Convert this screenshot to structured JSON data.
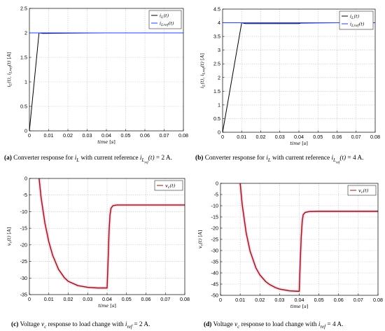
{
  "figures": [
    {
      "caption_label": "(a)",
      "caption_pre": "Converter response for ",
      "caption_mid": " with current reference ",
      "caption_sym1": "i_L",
      "caption_sym2": "i_{L_{ref}}(t) = 2 A",
      "caption_end": ".",
      "caption_text": "Converter response for i_L with current reference i_{L_{ref}}(t) = 2 A."
    },
    {
      "caption_label": "(b)",
      "caption_pre": "Converter response for ",
      "caption_mid": " with current reference ",
      "caption_sym1": "i_L",
      "caption_sym2": "i_{L_{ref}}(t) = 4 A",
      "caption_end": ".",
      "caption_text": "Converter response for i_L with current reference i_{L_{ref}}(t) = 4 A."
    },
    {
      "caption_label": "(c)",
      "caption_pre": "Voltage ",
      "caption_mid": " response to load change with ",
      "caption_sym1": "v_c",
      "caption_sym2": "i_{ref} = 2 A",
      "caption_end": ".",
      "caption_text": "Voltage v_c response to load change with i_{ref} = 2 A."
    },
    {
      "caption_label": "(d)",
      "caption_pre": "Voltage ",
      "caption_mid": " response to load change with ",
      "caption_sym1": "v_c",
      "caption_sym2": "i_{ref} = 4 A",
      "caption_end": ".",
      "caption_text": "Voltage v_c response to load change with i_{ref} = 4 A."
    }
  ],
  "chart_data": [
    {
      "type": "line",
      "xlabel": "time [s]",
      "ylabel": "i_L(t), i_{Lref}(t) [A]",
      "xlim": [
        0,
        0.08
      ],
      "ylim": [
        0,
        2.5
      ],
      "xticks": [
        "0",
        "0.01",
        "0.02",
        "0.03",
        "0.04",
        "0.05",
        "0.06",
        "0.07",
        "0.08"
      ],
      "yticks": [
        "0",
        "0.5",
        "1",
        "1.5",
        "2",
        "2.5"
      ],
      "grid": true,
      "legend_position": "top-right",
      "series": [
        {
          "name": "i_L(t)",
          "color": "#000000",
          "x": [
            0,
            0.005,
            0.007,
            0.02,
            0.04,
            0.06,
            0.08
          ],
          "y": [
            0,
            2.0,
            1.99,
            1.995,
            2.0,
            2.0,
            2.0
          ]
        },
        {
          "name": "i_{Lref}(t)",
          "color": "#1f3fff",
          "x": [
            0,
            0.08
          ],
          "y": [
            2.0,
            2.0
          ]
        }
      ]
    },
    {
      "type": "line",
      "xlabel": "time [s]",
      "ylabel": "i_L(t), i_{Lref}(t) [A]",
      "xlim": [
        0,
        0.08
      ],
      "ylim": [
        0,
        4.5
      ],
      "xticks": [
        "0",
        "0.01",
        "0.02",
        "0.03",
        "0.04",
        "0.05",
        "0.06",
        "0.07",
        "0.08"
      ],
      "yticks": [
        "0",
        "0.5",
        "1",
        "1.5",
        "2",
        "2.5",
        "3",
        "3.5",
        "4",
        "4.5"
      ],
      "grid": true,
      "legend_position": "top-right",
      "series": [
        {
          "name": "i_L(t)",
          "color": "#000000",
          "x": [
            0,
            0.01,
            0.012,
            0.04,
            0.041,
            0.06,
            0.08
          ],
          "y": [
            0,
            4.0,
            3.97,
            3.97,
            3.99,
            4.0,
            4.0
          ]
        },
        {
          "name": "i_{Lref}(t)",
          "color": "#1f3fff",
          "x": [
            0,
            0.08
          ],
          "y": [
            4.0,
            4.0
          ]
        }
      ]
    },
    {
      "type": "line",
      "xlabel": "time [s]",
      "ylabel": "v_c(t) [A]",
      "xlim": [
        0,
        0.08
      ],
      "ylim": [
        -35,
        0
      ],
      "xticks": [
        "0",
        "0.01",
        "0.02",
        "0.03",
        "0.04",
        "0.05",
        "0.06",
        "0.07",
        "0.08"
      ],
      "yticks": [
        "0",
        "-5",
        "-10",
        "-15",
        "-20",
        "-25",
        "-30",
        "-35"
      ],
      "grid": true,
      "legend_position": "top-right",
      "series": [
        {
          "name": "v_c(t)",
          "color": "#8b1a10",
          "band_color": "#f7b8d8",
          "x": [
            0.005,
            0.006,
            0.008,
            0.01,
            0.012,
            0.015,
            0.018,
            0.02,
            0.025,
            0.03,
            0.035,
            0.039,
            0.04,
            0.0405,
            0.041,
            0.0415,
            0.042,
            0.043,
            0.045,
            0.05,
            0.06,
            0.07,
            0.08
          ],
          "y": [
            0,
            -5.7,
            -13.5,
            -19.1,
            -23.2,
            -27.4,
            -29.9,
            -31.0,
            -32.3,
            -32.8,
            -33.0,
            -33.0,
            -33.0,
            -25,
            -16,
            -11,
            -9,
            -8.2,
            -8.0,
            -8.0,
            -8.0,
            -8.0,
            -8.0
          ]
        }
      ]
    },
    {
      "type": "line",
      "xlabel": "time [s]",
      "ylabel": "v_c(t) [A]",
      "xlim": [
        0,
        0.08
      ],
      "ylim": [
        -50,
        0
      ],
      "xticks": [
        "0",
        "0.01",
        "0.02",
        "0.03",
        "0.04",
        "0.05",
        "0.06",
        "0.07",
        "0.08"
      ],
      "yticks": [
        "0",
        "-5",
        "-10",
        "-15",
        "-20",
        "-25",
        "-30",
        "-35",
        "-40",
        "-45",
        "-50"
      ],
      "grid": true,
      "legend_position": "top-right",
      "series": [
        {
          "name": "v_c(t)",
          "color": "#8b1a10",
          "band_color": "#f7b8d8",
          "x": [
            0.01,
            0.011,
            0.013,
            0.015,
            0.018,
            0.02,
            0.023,
            0.025,
            0.028,
            0.03,
            0.035,
            0.039,
            0.04,
            0.0405,
            0.041,
            0.0415,
            0.042,
            0.043,
            0.045,
            0.05,
            0.06,
            0.07,
            0.08
          ],
          "y": [
            0,
            -9.3,
            -21.9,
            -30.2,
            -37.8,
            -40.9,
            -43.9,
            -45.2,
            -46.6,
            -47.2,
            -48.0,
            -48.2,
            -48.2,
            -35,
            -24,
            -17,
            -14,
            -13,
            -12.6,
            -12.5,
            -12.5,
            -12.5,
            -12.5
          ]
        }
      ]
    }
  ]
}
